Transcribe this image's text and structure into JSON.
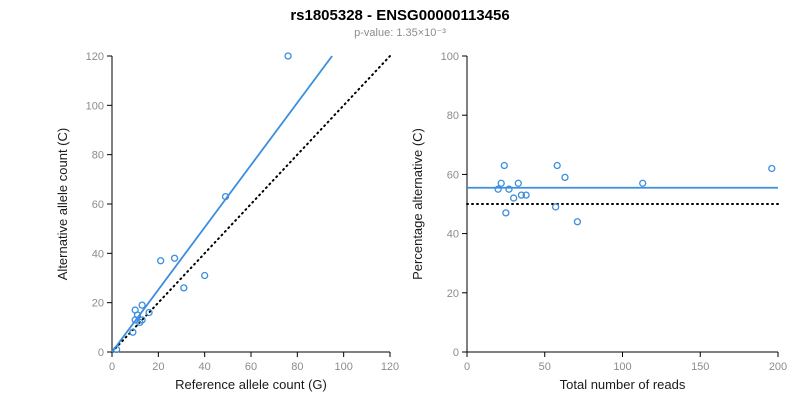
{
  "header": {
    "title": "rs1805328 - ENSG00000113456",
    "subtitle": "p-value: 1.35×10⁻³"
  },
  "theme": {
    "accent": "#3b8ede",
    "point_color": "#3b8ede",
    "axis_color": "#000000",
    "tick_label_color": "#8c8c8c",
    "axis_label_color": "#1a1a1a",
    "background": "#ffffff"
  },
  "chart_data": [
    {
      "type": "scatter",
      "name": "allele-counts-scatter",
      "title": "",
      "xlabel": "Reference allele count (G)",
      "ylabel": "Alternative allele count (C)",
      "xlim": [
        0,
        120
      ],
      "ylim": [
        0,
        120
      ],
      "xticks": [
        0,
        20,
        40,
        60,
        80,
        100,
        120
      ],
      "yticks": [
        0,
        20,
        40,
        60,
        80,
        100,
        120
      ],
      "grid": false,
      "legend": false,
      "points": [
        [
          2,
          1
        ],
        [
          9,
          8
        ],
        [
          10,
          13
        ],
        [
          10,
          17
        ],
        [
          11,
          15
        ],
        [
          12,
          12
        ],
        [
          13,
          13
        ],
        [
          13,
          19
        ],
        [
          16,
          16
        ],
        [
          21,
          37
        ],
        [
          27,
          38
        ],
        [
          31,
          26
        ],
        [
          40,
          31
        ],
        [
          49,
          63
        ],
        [
          76,
          120
        ]
      ],
      "lines": [
        {
          "name": "identity-line",
          "style": "dotted",
          "color": "#000000",
          "x1": 0,
          "y1": 0,
          "x2": 120,
          "y2": 120
        },
        {
          "name": "fit-line",
          "style": "solid",
          "color": "#3b8ede",
          "x1": 0,
          "y1": 0,
          "x2": 95,
          "y2": 120
        }
      ]
    },
    {
      "type": "scatter",
      "name": "percentage-vs-reads-scatter",
      "title": "",
      "xlabel": "Total number of reads",
      "ylabel": "Percentage alternative (C)",
      "xlim": [
        0,
        200
      ],
      "ylim": [
        0,
        100
      ],
      "xticks": [
        0,
        50,
        100,
        150,
        200
      ],
      "yticks": [
        0,
        20,
        40,
        60,
        80,
        100
      ],
      "grid": false,
      "legend": false,
      "points": [
        [
          20,
          55
        ],
        [
          22,
          57
        ],
        [
          24,
          63
        ],
        [
          25,
          47
        ],
        [
          27,
          55
        ],
        [
          30,
          52
        ],
        [
          33,
          57
        ],
        [
          35,
          53
        ],
        [
          38,
          53
        ],
        [
          57,
          49
        ],
        [
          58,
          63
        ],
        [
          63,
          59
        ],
        [
          71,
          44
        ],
        [
          113,
          57
        ],
        [
          196,
          62
        ]
      ],
      "lines": [
        {
          "name": "expected-line",
          "style": "dotted",
          "color": "#000000",
          "x1": 0,
          "y1": 50,
          "x2": 200,
          "y2": 50
        },
        {
          "name": "mean-line",
          "style": "solid",
          "color": "#3b8ede",
          "x1": 0,
          "y1": 55.5,
          "x2": 200,
          "y2": 55.5
        }
      ]
    }
  ]
}
